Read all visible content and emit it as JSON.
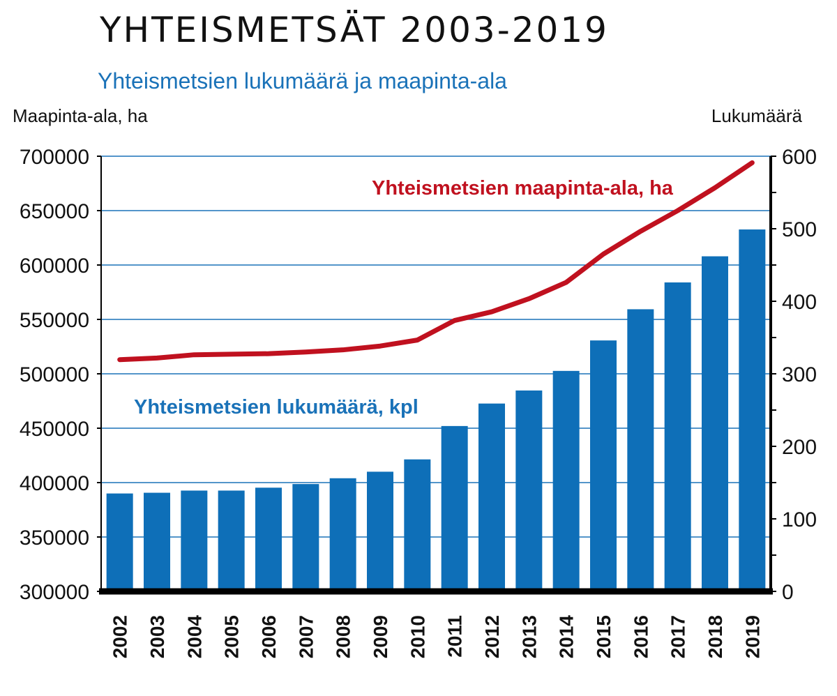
{
  "header": {
    "title": "YHTEISMETSÄT 2003-2019",
    "subtitle": "Yhteismetsien lukumäärä ja maapinta-ala",
    "ylabel_left": "Maapinta-ala, ha",
    "ylabel_right": "Lukumäärä"
  },
  "colors": {
    "bar": "#0e6fb8",
    "line": "#c0111f",
    "grid": "#1a72b8",
    "axis": "#000000"
  },
  "chart_data": {
    "type": "bar",
    "title": "YHTEISMETSÄT 2003-2019",
    "subtitle": "Yhteismetsien lukumäärä ja maapinta-ala",
    "categories": [
      "2002",
      "2003",
      "2004",
      "2005",
      "2006",
      "2007",
      "2008",
      "2009",
      "2010",
      "2011",
      "2012",
      "2013",
      "2014",
      "2015",
      "2016",
      "2017",
      "2018",
      "2019"
    ],
    "left_axis": {
      "label": "Maapinta-ala, ha",
      "ylim": [
        300000,
        700000
      ],
      "ticks": [
        "300000",
        "350000",
        "400000",
        "450000",
        "500000",
        "550000",
        "600000",
        "650000",
        "700000"
      ]
    },
    "right_axis": {
      "label": "Lukumäärä",
      "ylim": [
        0,
        600
      ],
      "ticks": [
        "0",
        "100",
        "200",
        "300",
        "400",
        "500",
        "600"
      ]
    },
    "grid": true,
    "series": [
      {
        "name": "Yhteismetsien lukumäärä, kpl",
        "type": "bar",
        "axis": "right",
        "values": [
          135,
          136,
          139,
          139,
          143,
          148,
          156,
          165,
          182,
          228,
          259,
          277,
          304,
          346,
          389,
          426,
          462,
          499
        ]
      },
      {
        "name": "Yhteismetsien maapinta-ala, ha",
        "type": "line",
        "axis": "left",
        "values": [
          513000,
          514500,
          517500,
          518000,
          518500,
          520000,
          522000,
          525500,
          531000,
          549000,
          557000,
          569000,
          584000,
          610000,
          631000,
          650000,
          671000,
          694000
        ]
      }
    ]
  }
}
